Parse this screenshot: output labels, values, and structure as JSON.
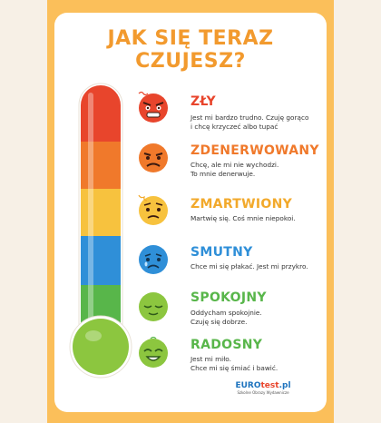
{
  "title": "JAK SIĘ TERAZ CZUJESZ?",
  "moods": [
    {
      "name": "ZŁY",
      "color": "#e8452c",
      "desc": [
        "Jest mi bardzo trudno. Czuję gorąco",
        "i chcę krzyczeć albo tupać"
      ]
    },
    {
      "name": "ZDENERWOWANY",
      "color": "#f0792b",
      "desc": [
        "Chcę, ale mi nie wychodzi.",
        "To mnie denerwuje."
      ]
    },
    {
      "name": "ZMARTWIONY",
      "color": "#f2a92b",
      "desc": [
        "Martwię się. Coś mnie niepokoi."
      ]
    },
    {
      "name": "SMUTNY",
      "color": "#2f8fd8",
      "desc": [
        "Chce mi się płakać. Jest mi przykro."
      ]
    },
    {
      "name": "SPOKOJNY",
      "color": "#58b64a",
      "desc": [
        "Oddycham spokojnie.",
        "Czuję się dobrze."
      ]
    },
    {
      "name": "RADOSNY",
      "color": "#58b64a",
      "desc": [
        "Jest mi miło.",
        "Chce mi się śmiać i bawić."
      ]
    }
  ],
  "logo": {
    "brand": "EURO",
    "accent": "test",
    "suffix": ".pl",
    "tagline": "Szkolne Obrazy Wydawnicze"
  }
}
